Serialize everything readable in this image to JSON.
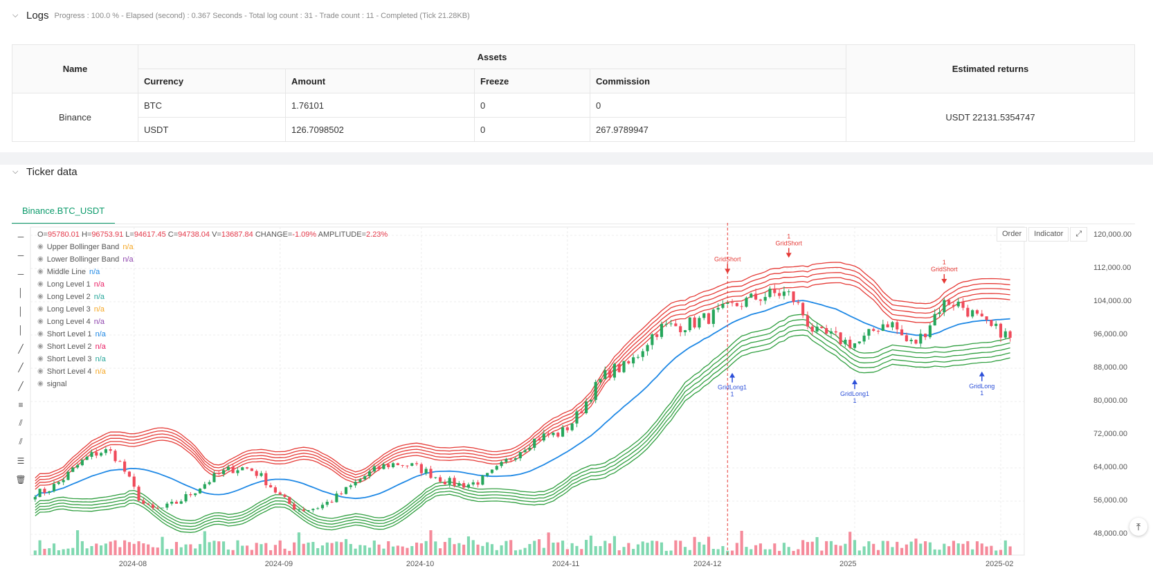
{
  "logs": {
    "title": "Logs",
    "status": "Progress : 100.0 % - Elapsed (second) : 0.367  Seconds - Total log count : 31 - Trade count : 11 - Completed (Tick 21.28KB)",
    "table": {
      "col_name": "Name",
      "col_assets": "Assets",
      "col_returns": "Estimated returns",
      "sub_cols": [
        "Currency",
        "Amount",
        "Freeze",
        "Commission"
      ],
      "exchange": "Binance",
      "rows": [
        {
          "currency": "BTC",
          "amount": "1.76101",
          "freeze": "0",
          "commission": "0"
        },
        {
          "currency": "USDT",
          "amount": "126.7098502",
          "freeze": "0",
          "commission": "267.9789947"
        }
      ],
      "estimated_returns": "USDT 22131.5354747"
    }
  },
  "ticker": {
    "title": "Ticker data",
    "tab": "Binance.BTC_USDT",
    "buttons": {
      "order": "Order",
      "indicator": "Indicator"
    },
    "ohlc": {
      "o_label": "O=",
      "o": "95780.01",
      "h_label": "H=",
      "h": "96753.91",
      "l_label": "L=",
      "l": "94617.45",
      "c_label": "C=",
      "c": "94738.04",
      "v_label": "V=",
      "v": "13687.84",
      "change_label": "CHANGE=",
      "change": "-1.09%",
      "amp_label": "AMPLITUDE=",
      "amp": "2.23%"
    },
    "legend": [
      {
        "name": "Upper Bollinger Band",
        "value": "n/a",
        "color": "#f5a623"
      },
      {
        "name": "Lower Bollinger Band",
        "value": "n/a",
        "color": "#8e44ad"
      },
      {
        "name": "Middle Line",
        "value": "n/a",
        "color": "#1e88e5"
      },
      {
        "name": "Long Level 1",
        "value": "n/a",
        "color": "#e91e63"
      },
      {
        "name": "Long Level 2",
        "value": "n/a",
        "color": "#26a69a"
      },
      {
        "name": "Long Level 3",
        "value": "n/a",
        "color": "#f5a623"
      },
      {
        "name": "Long Level 4",
        "value": "n/a",
        "color": "#8e44ad"
      },
      {
        "name": "Short Level 1",
        "value": "n/a",
        "color": "#1e88e5"
      },
      {
        "name": "Short Level 2",
        "value": "n/a",
        "color": "#e91e63"
      },
      {
        "name": "Short Level 3",
        "value": "n/a",
        "color": "#26a69a"
      },
      {
        "name": "Short Level 4",
        "value": "n/a",
        "color": "#f5a623"
      },
      {
        "name": "signal",
        "value": "",
        "color": "#999999"
      }
    ],
    "tools": [
      "horizontal-line-icon",
      "horizontal-ray-icon",
      "segment-icon",
      "vertical-line-icon",
      "cross-line-icon",
      "vertical-segment-icon",
      "trend-line-icon",
      "ray-icon",
      "extended-line-icon",
      "parallel-channel-icon",
      "pitchfork-icon",
      "fib-icon",
      "measure-icon",
      "trash-icon"
    ],
    "colors": {
      "up": "#26a65b",
      "down": "#f04a5a",
      "upper": "#e53935",
      "lower": "#2e9e3e",
      "mid": "#1e88e5",
      "vol_up": "#7fd8b0",
      "vol_down": "#f58a9a",
      "long_sig": "#2c4fd8",
      "short_sig": "#e53935"
    }
  },
  "chart_data": {
    "type": "candlestick",
    "y_axis_ticks": [
      "120,000.00",
      "112,000.00",
      "104,000.00",
      "96,000.00",
      "88,000.00",
      "80,000.00",
      "72,000.00",
      "64,000.00",
      "56,000.00",
      "48,000.00"
    ],
    "ylim": [
      43000,
      122000
    ],
    "x_axis_ticks": [
      "2024-08",
      "2024-09",
      "2024-10",
      "2024-11",
      "2024-12",
      "2025",
      "2025-02"
    ],
    "close_anchors": [
      {
        "date": "2024-07-11",
        "close": 58000
      },
      {
        "date": "2024-07-26",
        "close": 68000
      },
      {
        "date": "2024-08-05",
        "close": 54000
      },
      {
        "date": "2024-08-24",
        "close": 64000
      },
      {
        "date": "2024-09-06",
        "close": 54000
      },
      {
        "date": "2024-09-26",
        "close": 65000
      },
      {
        "date": "2024-10-10",
        "close": 60000
      },
      {
        "date": "2024-10-29",
        "close": 72000
      },
      {
        "date": "2024-11-12",
        "close": 88000
      },
      {
        "date": "2024-11-22",
        "close": 98000
      },
      {
        "date": "2024-12-17",
        "close": 106000
      },
      {
        "date": "2024-12-25",
        "close": 96000
      },
      {
        "date": "2025-01-01",
        "close": 94000
      },
      {
        "date": "2025-01-08",
        "close": 99000
      },
      {
        "date": "2025-01-13",
        "close": 94000
      },
      {
        "date": "2025-01-21",
        "close": 104000
      },
      {
        "date": "2025-02-01",
        "close": 97000
      },
      {
        "date": "2025-02-03",
        "close": 95000
      }
    ],
    "signals": [
      {
        "label": "GridShort",
        "qty": "",
        "side": "short",
        "date": "2024-12-05"
      },
      {
        "label": "GridShort",
        "qty": "1",
        "side": "short",
        "date": "2024-12-18"
      },
      {
        "label": "GridShort",
        "qty": "1",
        "side": "short",
        "date": "2025-01-20"
      },
      {
        "label": "GridLong1",
        "qty": "1",
        "side": "long",
        "date": "2024-12-06"
      },
      {
        "label": "GridLong1",
        "qty": "1",
        "side": "long",
        "date": "2025-01-01"
      },
      {
        "label": "GridLong",
        "qty": "1",
        "side": "long",
        "date": "2025-01-28"
      }
    ]
  }
}
